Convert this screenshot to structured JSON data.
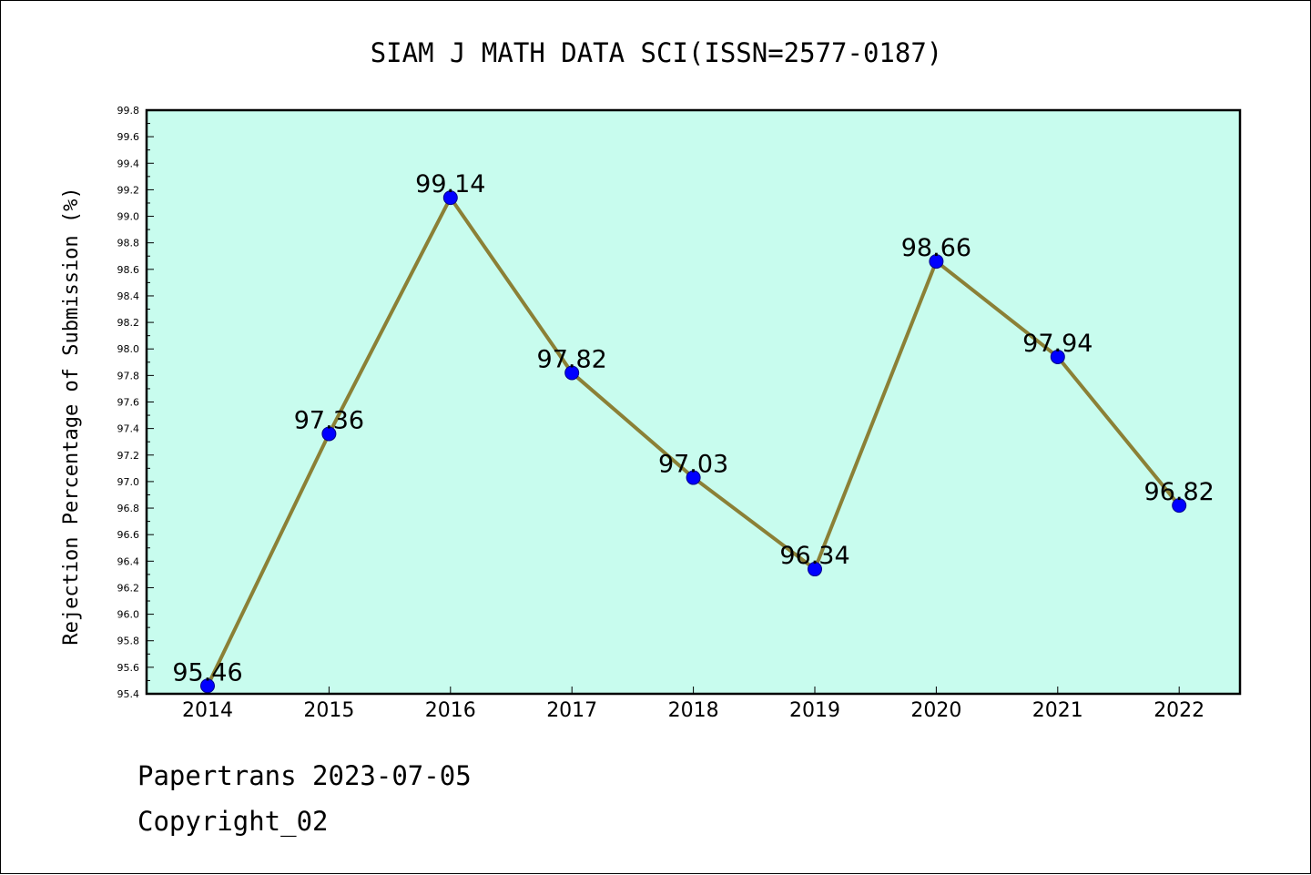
{
  "chart_data": {
    "type": "line",
    "title": "SIAM J MATH DATA SCI(ISSN=2577-0187)",
    "xlabel": "",
    "ylabel": "Rejection Percentage of Submission (%)",
    "categories": [
      "2014",
      "2015",
      "2016",
      "2017",
      "2018",
      "2019",
      "2020",
      "2021",
      "2022"
    ],
    "series": [
      {
        "values": [
          95.46,
          97.36,
          99.14,
          97.82,
          97.03,
          96.34,
          98.66,
          97.94,
          96.82
        ]
      }
    ],
    "data_labels": [
      "95.46",
      "97.36",
      "99.14",
      "97.82",
      "97.03",
      "96.34",
      "98.66",
      "97.94",
      "96.82"
    ],
    "ylim": [
      95.4,
      99.8
    ],
    "yticks": [
      "95.4",
      "95.6",
      "95.8",
      "96.0",
      "96.2",
      "96.4",
      "96.6",
      "96.8",
      "97.0",
      "97.2",
      "97.4",
      "97.6",
      "97.8",
      "98.0",
      "98.2",
      "98.4",
      "98.6",
      "98.8",
      "99.0",
      "99.2",
      "99.4",
      "99.6",
      "99.8"
    ],
    "grid": false,
    "colors": {
      "plot_background": "#c8fcee",
      "line": "#8b8036",
      "marker": "#0000ff"
    }
  },
  "footer": {
    "source": "Papertrans 2023-07-05",
    "copyright": "Copyright_02"
  }
}
